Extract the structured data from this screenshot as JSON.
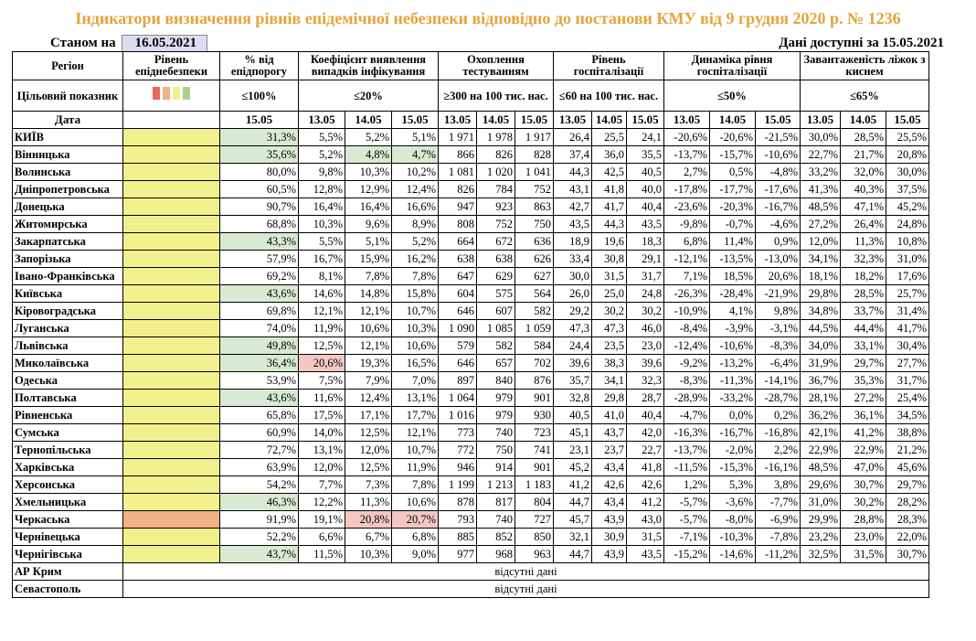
{
  "title": "Індикатори визначення рівнів епідемічної небезпеки відповідно до постанови КМУ від 9 грудня 2020 р. № 1236",
  "meta": {
    "as_of_label": "Станом на",
    "as_of_date": "16.05.2021",
    "available_label": "Дані доступні за 15.05.2021"
  },
  "headers": {
    "region": "Регіон",
    "level": "Рівень епіднебезпеки",
    "threshold": "% від епідпорогу",
    "detection": "Коефіцієнт виявлення випадків інфікування",
    "testing": "Охоплення тестуванням",
    "hosp": "Рівень госпіталізації",
    "hosp_dyn": "Динаміка рівня госпіталізації",
    "oxygen": "Завантаженість ліжок з киснем"
  },
  "targets": {
    "label": "Цільовий показник",
    "threshold": "≤100%",
    "detection": "≤20%",
    "testing": "≥300 на 100 тис. нас.",
    "hosp": "≤60 на 100 тис. нас.",
    "hosp_dyn": "≤50%",
    "oxygen": "≤65%"
  },
  "legend_colors": [
    "#e26b5c",
    "#f4b183",
    "#f2f08c",
    "#a9d18e"
  ],
  "dates": {
    "label": "Дата",
    "threshold": [
      "15.05"
    ],
    "detection": [
      "13.05",
      "14.05",
      "15.05"
    ],
    "testing": [
      "13.05",
      "14.05",
      "15.05"
    ],
    "hosp": [
      "13.05",
      "14.05",
      "15.05"
    ],
    "hosp_dyn": [
      "13.05",
      "14.05",
      "15.05"
    ],
    "oxygen": [
      "13.05",
      "14.05",
      "15.05"
    ]
  },
  "rows": [
    {
      "region": "КИЇВ",
      "level": "y",
      "thr": "31,3%",
      "thr_c": "g",
      "det": [
        "5,5%",
        "5,2%",
        "5,1%"
      ],
      "det_c": [
        "",
        "",
        ""
      ],
      "test": [
        "1 971",
        "1 978",
        "1 917"
      ],
      "hosp": [
        "26,4",
        "25,5",
        "24,1"
      ],
      "dyn": [
        "-20,6%",
        "-20,6%",
        "-21,5%"
      ],
      "oxy": [
        "30,0%",
        "28,5%",
        "25,5%"
      ]
    },
    {
      "region": "Вінницька",
      "level": "y",
      "thr": "35,6%",
      "thr_c": "g",
      "det": [
        "5,2%",
        "4,8%",
        "4,7%"
      ],
      "det_c": [
        "",
        "g",
        "g"
      ],
      "test": [
        "866",
        "826",
        "828"
      ],
      "hosp": [
        "37,4",
        "36,0",
        "35,5"
      ],
      "dyn": [
        "-13,7%",
        "-15,7%",
        "-10,6%"
      ],
      "oxy": [
        "22,7%",
        "21,7%",
        "20,8%"
      ]
    },
    {
      "region": "Волинська",
      "level": "y",
      "thr": "80,0%",
      "thr_c": "",
      "det": [
        "9,8%",
        "10,3%",
        "10,2%"
      ],
      "det_c": [
        "",
        "",
        ""
      ],
      "test": [
        "1 081",
        "1 020",
        "1 041"
      ],
      "hosp": [
        "44,3",
        "42,5",
        "40,5"
      ],
      "dyn": [
        "2,7%",
        "0,5%",
        "-4,8%"
      ],
      "oxy": [
        "33,2%",
        "32,0%",
        "30,0%"
      ]
    },
    {
      "region": "Дніпропетровська",
      "level": "y",
      "thr": "60,5%",
      "thr_c": "",
      "det": [
        "12,8%",
        "12,9%",
        "12,4%"
      ],
      "det_c": [
        "",
        "",
        ""
      ],
      "test": [
        "826",
        "784",
        "752"
      ],
      "hosp": [
        "43,1",
        "41,8",
        "40,0"
      ],
      "dyn": [
        "-17,8%",
        "-17,7%",
        "-17,6%"
      ],
      "oxy": [
        "41,3%",
        "40,3%",
        "37,5%"
      ]
    },
    {
      "region": "Донецька",
      "level": "y",
      "thr": "90,7%",
      "thr_c": "",
      "det": [
        "16,4%",
        "16,4%",
        "16,6%"
      ],
      "det_c": [
        "",
        "",
        ""
      ],
      "test": [
        "947",
        "923",
        "863"
      ],
      "hosp": [
        "42,7",
        "41,7",
        "40,4"
      ],
      "dyn": [
        "-23,6%",
        "-20,3%",
        "-16,7%"
      ],
      "oxy": [
        "48,5%",
        "47,1%",
        "45,2%"
      ]
    },
    {
      "region": "Житомирська",
      "level": "y",
      "thr": "68,8%",
      "thr_c": "",
      "det": [
        "10,3%",
        "9,6%",
        "8,9%"
      ],
      "det_c": [
        "",
        "",
        ""
      ],
      "test": [
        "808",
        "752",
        "750"
      ],
      "hosp": [
        "43,5",
        "44,3",
        "43,5"
      ],
      "dyn": [
        "-9,8%",
        "-0,7%",
        "-4,6%"
      ],
      "oxy": [
        "27,2%",
        "26,4%",
        "24,8%"
      ]
    },
    {
      "region": "Закарпатська",
      "level": "y",
      "thr": "43,3%",
      "thr_c": "g",
      "det": [
        "5,5%",
        "5,1%",
        "5,2%"
      ],
      "det_c": [
        "",
        "",
        ""
      ],
      "test": [
        "664",
        "672",
        "636"
      ],
      "hosp": [
        "18,9",
        "19,6",
        "18,3"
      ],
      "dyn": [
        "6,8%",
        "11,4%",
        "0,9%"
      ],
      "oxy": [
        "12,0%",
        "11,3%",
        "10,8%"
      ]
    },
    {
      "region": "Запорізька",
      "level": "y",
      "thr": "57,9%",
      "thr_c": "",
      "det": [
        "16,7%",
        "15,9%",
        "16,2%"
      ],
      "det_c": [
        "",
        "",
        ""
      ],
      "test": [
        "638",
        "638",
        "626"
      ],
      "hosp": [
        "33,4",
        "30,8",
        "29,1"
      ],
      "dyn": [
        "-12,1%",
        "-13,5%",
        "-13,0%"
      ],
      "oxy": [
        "34,1%",
        "32,3%",
        "31,0%"
      ]
    },
    {
      "region": "Івано-Франківська",
      "level": "y",
      "thr": "69,2%",
      "thr_c": "",
      "det": [
        "8,1%",
        "7,8%",
        "7,8%"
      ],
      "det_c": [
        "",
        "",
        ""
      ],
      "test": [
        "647",
        "629",
        "627"
      ],
      "hosp": [
        "30,0",
        "31,5",
        "31,7"
      ],
      "dyn": [
        "7,1%",
        "18,5%",
        "20,6%"
      ],
      "oxy": [
        "18,1%",
        "18,2%",
        "17,6%"
      ]
    },
    {
      "region": "Київська",
      "level": "y",
      "thr": "43,6%",
      "thr_c": "g",
      "det": [
        "14,6%",
        "14,8%",
        "15,8%"
      ],
      "det_c": [
        "",
        "",
        ""
      ],
      "test": [
        "604",
        "575",
        "564"
      ],
      "hosp": [
        "26,0",
        "25,0",
        "24,8"
      ],
      "dyn": [
        "-26,3%",
        "-28,4%",
        "-21,9%"
      ],
      "oxy": [
        "29,8%",
        "28,5%",
        "25,7%"
      ]
    },
    {
      "region": "Кіровоградська",
      "level": "y",
      "thr": "69,8%",
      "thr_c": "",
      "det": [
        "12,1%",
        "12,1%",
        "10,7%"
      ],
      "det_c": [
        "",
        "",
        ""
      ],
      "test": [
        "646",
        "607",
        "582"
      ],
      "hosp": [
        "29,2",
        "30,2",
        "30,2"
      ],
      "dyn": [
        "-10,9%",
        "4,1%",
        "9,8%"
      ],
      "oxy": [
        "34,8%",
        "33,7%",
        "31,4%"
      ]
    },
    {
      "region": "Луганська",
      "level": "y",
      "thr": "74,0%",
      "thr_c": "",
      "det": [
        "11,9%",
        "10,6%",
        "10,3%"
      ],
      "det_c": [
        "",
        "",
        ""
      ],
      "test": [
        "1 090",
        "1 085",
        "1 059"
      ],
      "hosp": [
        "47,3",
        "47,3",
        "46,0"
      ],
      "dyn": [
        "-8,4%",
        "-3,9%",
        "-3,1%"
      ],
      "oxy": [
        "44,5%",
        "44,4%",
        "41,7%"
      ]
    },
    {
      "region": "Львівська",
      "level": "y",
      "thr": "49,8%",
      "thr_c": "g",
      "det": [
        "12,5%",
        "12,1%",
        "10,6%"
      ],
      "det_c": [
        "",
        "",
        ""
      ],
      "test": [
        "579",
        "582",
        "584"
      ],
      "hosp": [
        "24,4",
        "23,5",
        "23,0"
      ],
      "dyn": [
        "-12,4%",
        "-10,6%",
        "-8,3%"
      ],
      "oxy": [
        "34,0%",
        "33,1%",
        "30,4%"
      ]
    },
    {
      "region": "Миколаївська",
      "level": "y",
      "thr": "36,4%",
      "thr_c": "g",
      "det": [
        "20,6%",
        "19,3%",
        "16,5%"
      ],
      "det_c": [
        "p",
        "",
        ""
      ],
      "test": [
        "646",
        "657",
        "702"
      ],
      "hosp": [
        "39,6",
        "38,3",
        "39,6"
      ],
      "dyn": [
        "-9,2%",
        "-13,2%",
        "-6,4%"
      ],
      "oxy": [
        "31,9%",
        "29,7%",
        "27,7%"
      ]
    },
    {
      "region": "Одеська",
      "level": "y",
      "thr": "53,9%",
      "thr_c": "",
      "det": [
        "7,5%",
        "7,9%",
        "7,0%"
      ],
      "det_c": [
        "",
        "",
        ""
      ],
      "test": [
        "897",
        "840",
        "876"
      ],
      "hosp": [
        "35,7",
        "34,1",
        "32,3"
      ],
      "dyn": [
        "-8,3%",
        "-11,3%",
        "-14,1%"
      ],
      "oxy": [
        "36,7%",
        "35,3%",
        "31,7%"
      ]
    },
    {
      "region": "Полтавська",
      "level": "y",
      "thr": "43,6%",
      "thr_c": "g",
      "det": [
        "11,6%",
        "12,4%",
        "13,1%"
      ],
      "det_c": [
        "",
        "",
        ""
      ],
      "test": [
        "1 064",
        "979",
        "901"
      ],
      "hosp": [
        "32,8",
        "29,8",
        "28,7"
      ],
      "dyn": [
        "-28,9%",
        "-33,2%",
        "-28,7%"
      ],
      "oxy": [
        "28,1%",
        "27,2%",
        "25,4%"
      ]
    },
    {
      "region": "Рівненська",
      "level": "y",
      "thr": "65,8%",
      "thr_c": "",
      "det": [
        "17,5%",
        "17,1%",
        "17,7%"
      ],
      "det_c": [
        "",
        "",
        ""
      ],
      "test": [
        "1 016",
        "979",
        "930"
      ],
      "hosp": [
        "40,5",
        "41,0",
        "40,4"
      ],
      "dyn": [
        "-4,7%",
        "0,0%",
        "0,2%"
      ],
      "oxy": [
        "36,2%",
        "36,1%",
        "34,5%"
      ]
    },
    {
      "region": "Сумська",
      "level": "y",
      "thr": "60,9%",
      "thr_c": "",
      "det": [
        "14,0%",
        "12,5%",
        "12,1%"
      ],
      "det_c": [
        "",
        "",
        ""
      ],
      "test": [
        "773",
        "740",
        "723"
      ],
      "hosp": [
        "45,1",
        "43,7",
        "42,0"
      ],
      "dyn": [
        "-16,3%",
        "-16,7%",
        "-16,8%"
      ],
      "oxy": [
        "42,1%",
        "41,2%",
        "38,8%"
      ]
    },
    {
      "region": "Тернопільська",
      "level": "y",
      "thr": "72,7%",
      "thr_c": "",
      "det": [
        "13,1%",
        "12,0%",
        "10,7%"
      ],
      "det_c": [
        "",
        "",
        ""
      ],
      "test": [
        "772",
        "750",
        "741"
      ],
      "hosp": [
        "23,1",
        "23,7",
        "22,7"
      ],
      "dyn": [
        "-13,7%",
        "-2,0%",
        "2,2%"
      ],
      "oxy": [
        "22,9%",
        "22,9%",
        "21,2%"
      ]
    },
    {
      "region": "Харківська",
      "level": "y",
      "thr": "63,9%",
      "thr_c": "",
      "det": [
        "12,0%",
        "12,5%",
        "11,9%"
      ],
      "det_c": [
        "",
        "",
        ""
      ],
      "test": [
        "946",
        "914",
        "901"
      ],
      "hosp": [
        "45,2",
        "43,4",
        "41,8"
      ],
      "dyn": [
        "-11,5%",
        "-15,3%",
        "-16,1%"
      ],
      "oxy": [
        "48,5%",
        "47,0%",
        "45,6%"
      ]
    },
    {
      "region": "Херсонська",
      "level": "y",
      "thr": "54,2%",
      "thr_c": "",
      "det": [
        "7,7%",
        "7,3%",
        "7,8%"
      ],
      "det_c": [
        "",
        "",
        ""
      ],
      "test": [
        "1 199",
        "1 213",
        "1 183"
      ],
      "hosp": [
        "41,2",
        "42,6",
        "42,6"
      ],
      "dyn": [
        "1,2%",
        "5,3%",
        "3,8%"
      ],
      "oxy": [
        "29,6%",
        "30,7%",
        "29,7%"
      ]
    },
    {
      "region": "Хмельницька",
      "level": "y",
      "thr": "46,3%",
      "thr_c": "g",
      "det": [
        "12,2%",
        "11,3%",
        "10,6%"
      ],
      "det_c": [
        "",
        "",
        ""
      ],
      "test": [
        "878",
        "817",
        "804"
      ],
      "hosp": [
        "44,7",
        "43,4",
        "41,2"
      ],
      "dyn": [
        "-5,7%",
        "-3,6%",
        "-7,7%"
      ],
      "oxy": [
        "31,0%",
        "30,2%",
        "28,2%"
      ]
    },
    {
      "region": "Черкаська",
      "level": "o",
      "thr": "91,9%",
      "thr_c": "",
      "det": [
        "19,1%",
        "20,8%",
        "20,7%"
      ],
      "det_c": [
        "",
        "p",
        "p"
      ],
      "test": [
        "793",
        "740",
        "727"
      ],
      "hosp": [
        "45,7",
        "43,9",
        "43,0"
      ],
      "dyn": [
        "-5,7%",
        "-8,0%",
        "-6,9%"
      ],
      "oxy": [
        "29,9%",
        "28,8%",
        "28,3%"
      ]
    },
    {
      "region": "Чернівецька",
      "level": "y",
      "thr": "52,2%",
      "thr_c": "",
      "det": [
        "6,6%",
        "6,7%",
        "6,8%"
      ],
      "det_c": [
        "",
        "",
        ""
      ],
      "test": [
        "885",
        "852",
        "850"
      ],
      "hosp": [
        "32,1",
        "30,9",
        "31,5"
      ],
      "dyn": [
        "-7,1%",
        "-10,3%",
        "-7,8%"
      ],
      "oxy": [
        "23,2%",
        "23,0%",
        "22,0%"
      ]
    },
    {
      "region": "Чернігівська",
      "level": "y",
      "thr": "43,7%",
      "thr_c": "g",
      "det": [
        "11,5%",
        "10,3%",
        "9,0%"
      ],
      "det_c": [
        "",
        "",
        ""
      ],
      "test": [
        "977",
        "968",
        "963"
      ],
      "hosp": [
        "44,7",
        "43,9",
        "43,5"
      ],
      "dyn": [
        "-15,2%",
        "-14,6%",
        "-11,2%"
      ],
      "oxy": [
        "32,5%",
        "31,5%",
        "30,7%"
      ]
    }
  ],
  "missing": [
    {
      "region": "АР Крим",
      "text": "відсутні дані"
    },
    {
      "region": "Севастополь",
      "text": "відсутні дані"
    }
  ]
}
